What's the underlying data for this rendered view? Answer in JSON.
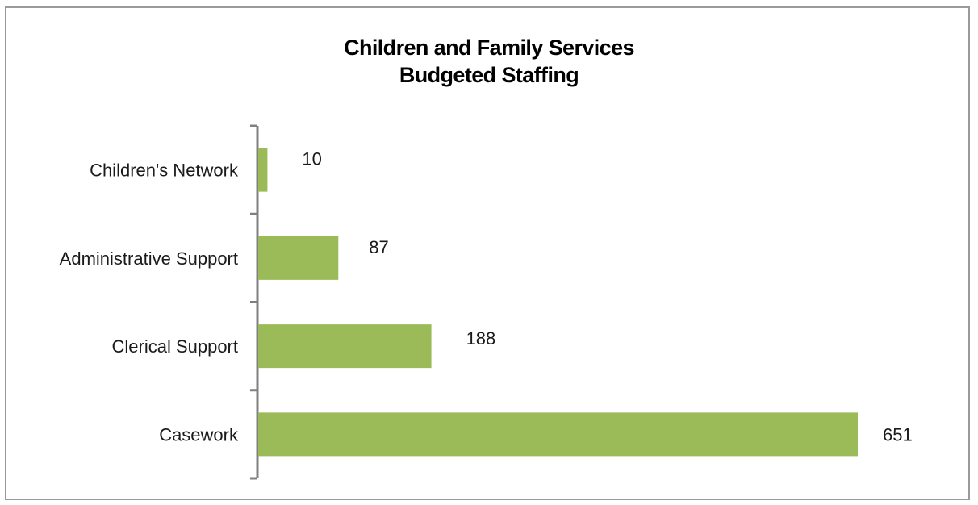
{
  "chart_data": {
    "type": "bar",
    "orientation": "horizontal",
    "title_lines": [
      "Children and Family Services",
      "Budgeted Staffing"
    ],
    "categories": [
      "Children's Network",
      "Administrative Support",
      "Clerical Support",
      "Casework"
    ],
    "values": [
      10,
      87,
      188,
      651
    ],
    "data_labels": [
      "10",
      "87",
      "188",
      "651"
    ],
    "bar_color": "#9bbb59",
    "axis_color": "#808080",
    "xlabel": "",
    "ylabel": "",
    "grid": false,
    "legend": "none"
  }
}
